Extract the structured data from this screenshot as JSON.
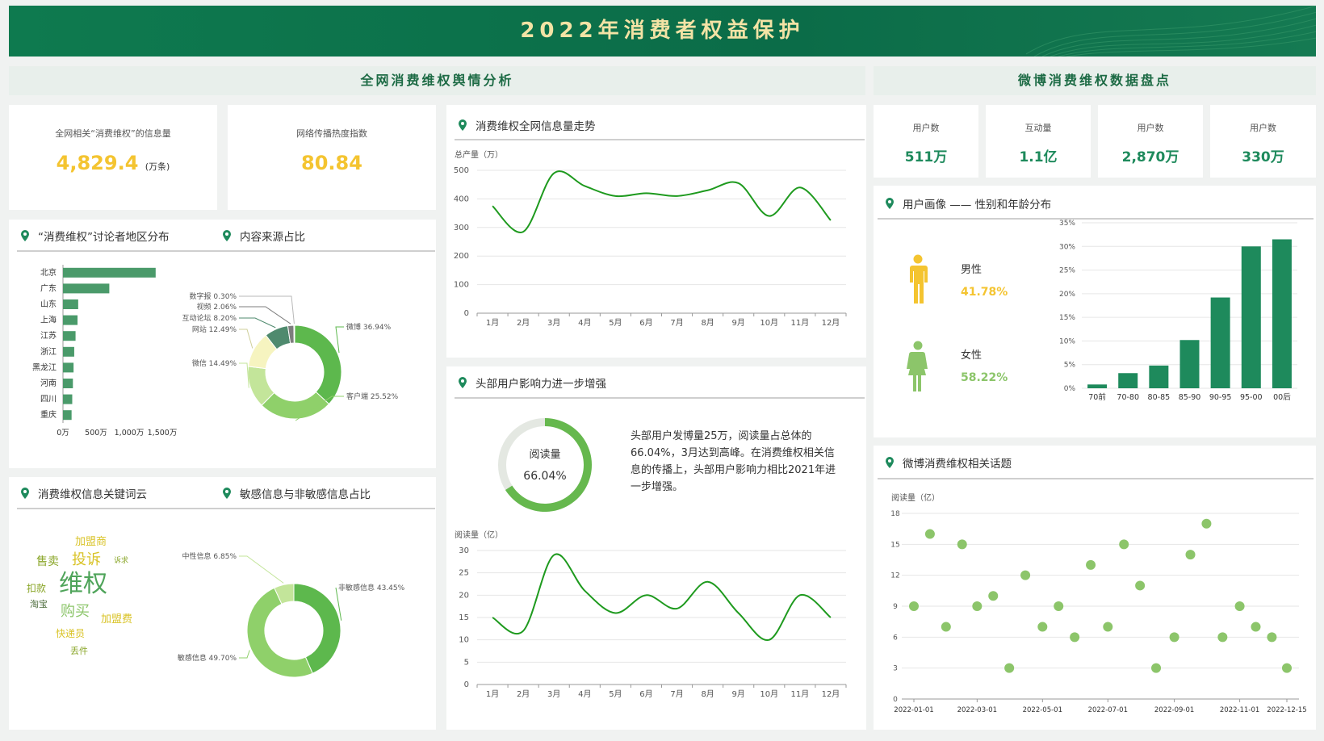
{
  "header": {
    "title": "2022年消费者权益保护"
  },
  "sections": {
    "left": "全网消费维权舆情分析",
    "right": "微博消费维权数据盘点"
  },
  "kpis_left": [
    {
      "label": "全网相关“消费维权”的信息量",
      "value": "4,829.4",
      "unit": "(万条)",
      "color": "#f4c430"
    },
    {
      "label": "网络传播热度指数",
      "value": "80.84",
      "unit": "",
      "color": "#f4c430"
    }
  ],
  "kpis_right": [
    {
      "label": "用户数",
      "value": "511万"
    },
    {
      "label": "互动量",
      "value": "1.1亿"
    },
    {
      "label": "用户数",
      "value": "2,870万"
    },
    {
      "label": "用户数",
      "value": "330万"
    }
  ],
  "panels": {
    "region": "“消费维权”讨论者地区分布",
    "source": "内容来源占比",
    "trend": "消费维权全网信息量走势",
    "influence": "头部用户影响力进一步增强",
    "keywords": "消费维权信息关键词云",
    "sensitive": "敏感信息与非敏感信息占比",
    "portrait": "用户画像 —— 性别和年龄分布",
    "topics": "微博消费维权相关话题"
  },
  "influence": {
    "donut_label": "阅读量",
    "donut_value": "66.04%",
    "donut_fraction": 0.6604,
    "text": "头部用户发博量25万，阅读量占总体的66.04%，3月达到高峰。在消费维权相关信息的传播上，头部用户影响力相比2021年进一步增强。"
  },
  "gender": {
    "male_label": "男性",
    "male_value": "41.78%",
    "female_label": "女性",
    "female_value": "58.22%",
    "male_color": "#f4c430",
    "female_color": "#8cc56a"
  },
  "wordcloud": [
    {
      "text": "加盟商",
      "color": "#d9c327",
      "size": 13
    },
    {
      "text": "售卖",
      "color": "#8aa629",
      "size": 14
    },
    {
      "text": "投诉",
      "color": "#d9c327",
      "size": 18
    },
    {
      "text": "诉求",
      "color": "#8aa629",
      "size": 9
    },
    {
      "text": "扣款",
      "color": "#8aa629",
      "size": 12
    },
    {
      "text": "维权",
      "color": "#4fa45a",
      "size": 30
    },
    {
      "text": "淘宝",
      "color": "#4b6b3a",
      "size": 11
    },
    {
      "text": "购买",
      "color": "#8cc56a",
      "size": 18
    },
    {
      "text": "加盟费",
      "color": "#d9c327",
      "size": 13
    },
    {
      "text": "快递员",
      "color": "#d9c327",
      "size": 12
    },
    {
      "text": "丢件",
      "color": "#8aa629",
      "size": 11
    }
  ],
  "chart_data": [
    {
      "id": "region",
      "type": "bar",
      "orientation": "horizontal",
      "categories": [
        "北京",
        "广东",
        "山东",
        "上海",
        "江苏",
        "浙江",
        "黑龙江",
        "河南",
        "四川",
        "重庆"
      ],
      "values": [
        1400,
        700,
        230,
        220,
        190,
        170,
        160,
        150,
        140,
        130
      ],
      "xticks": [
        "0万",
        "500万",
        "1,000万",
        "1,500万"
      ],
      "xlim": [
        0,
        1500
      ],
      "color": "#4a9a6a"
    },
    {
      "id": "source",
      "type": "pie",
      "donut": true,
      "labels": [
        "微博",
        "客户端",
        "微信",
        "网站",
        "互动论坛",
        "视频",
        "数字报"
      ],
      "values": [
        36.94,
        25.52,
        14.49,
        12.49,
        8.2,
        2.06,
        0.3
      ],
      "display": [
        "微博 36.94%",
        "客户端 25.52%",
        "微信 14.49%",
        "网站 12.49%",
        "互动论坛 8.20%",
        "视频 2.06%",
        "数字报 0.30%"
      ],
      "colors": [
        "#5db84d",
        "#8fd06a",
        "#c3e59a",
        "#f6f4c0",
        "#4f8a6e",
        "#7d7d7d",
        "#b8b8b8"
      ]
    },
    {
      "id": "trend",
      "type": "line",
      "ylabel": "总产量（万）",
      "x": [
        "1月",
        "2月",
        "3月",
        "4月",
        "5月",
        "6月",
        "7月",
        "8月",
        "9月",
        "10月",
        "11月",
        "12月"
      ],
      "y": [
        375,
        285,
        490,
        445,
        410,
        420,
        410,
        430,
        455,
        340,
        440,
        325
      ],
      "ylim": [
        0,
        500
      ],
      "yticks": [
        0,
        100,
        200,
        300,
        400,
        500
      ],
      "color": "#1e9a1e"
    },
    {
      "id": "reads",
      "type": "line",
      "ylabel": "阅读量（亿）",
      "x": [
        "1月",
        "2月",
        "3月",
        "4月",
        "5月",
        "6月",
        "7月",
        "8月",
        "9月",
        "10月",
        "11月",
        "12月"
      ],
      "y": [
        15,
        12,
        29,
        21,
        16,
        20,
        17,
        23,
        16,
        10,
        20,
        15
      ],
      "ylim": [
        0,
        30
      ],
      "yticks": [
        0,
        5,
        10,
        15,
        20,
        25,
        30
      ],
      "color": "#1e9a1e"
    },
    {
      "id": "sensitive",
      "type": "pie",
      "donut": true,
      "labels": [
        "非敏感信息",
        "敏感信息",
        "中性信息"
      ],
      "values": [
        43.45,
        49.7,
        6.85
      ],
      "display": [
        "非敏感信息 43.45%",
        "敏感信息 49.70%",
        "中性信息 6.85%"
      ],
      "colors": [
        "#5db84d",
        "#8fd06a",
        "#c3e59a"
      ]
    },
    {
      "id": "age",
      "type": "bar",
      "categories": [
        "70前",
        "70-80",
        "80-85",
        "85-90",
        "90-95",
        "95-00",
        "00后"
      ],
      "values": [
        0.8,
        3.2,
        4.8,
        10.2,
        19.2,
        30.0,
        31.5
      ],
      "yticks": [
        "0%",
        "5%",
        "10%",
        "15%",
        "20%",
        "25%",
        "30%",
        "35%"
      ],
      "ylim": [
        0,
        35
      ],
      "color": "#1e8a5c"
    },
    {
      "id": "topics",
      "type": "scatter",
      "ylabel": "阅读量（亿）",
      "xticks": [
        "2022-01-01",
        "2022-03-01",
        "2022-05-01",
        "2022-07-01",
        "2022-09-01",
        "2022-11-01",
        "2022-12-15"
      ],
      "points": [
        [
          "2022-01-01",
          9
        ],
        [
          "2022-01-16",
          16
        ],
        [
          "2022-01-31",
          7
        ],
        [
          "2022-02-15",
          15
        ],
        [
          "2022-03-01",
          9
        ],
        [
          "2022-03-16",
          10
        ],
        [
          "2022-03-31",
          3
        ],
        [
          "2022-04-15",
          12
        ],
        [
          "2022-05-01",
          7
        ],
        [
          "2022-05-16",
          9
        ],
        [
          "2022-05-31",
          6
        ],
        [
          "2022-06-15",
          13
        ],
        [
          "2022-07-01",
          7
        ],
        [
          "2022-07-16",
          15
        ],
        [
          "2022-07-31",
          11
        ],
        [
          "2022-08-15",
          3
        ],
        [
          "2022-09-01",
          6
        ],
        [
          "2022-09-16",
          14
        ],
        [
          "2022-10-01",
          17
        ],
        [
          "2022-10-16",
          6
        ],
        [
          "2022-11-01",
          9
        ],
        [
          "2022-11-16",
          7
        ],
        [
          "2022-12-01",
          6
        ],
        [
          "2022-12-15",
          3
        ]
      ],
      "ylim": [
        0,
        18
      ],
      "yticks": [
        0,
        3,
        6,
        9,
        12,
        15,
        18
      ],
      "color": "#8cc56a"
    }
  ]
}
